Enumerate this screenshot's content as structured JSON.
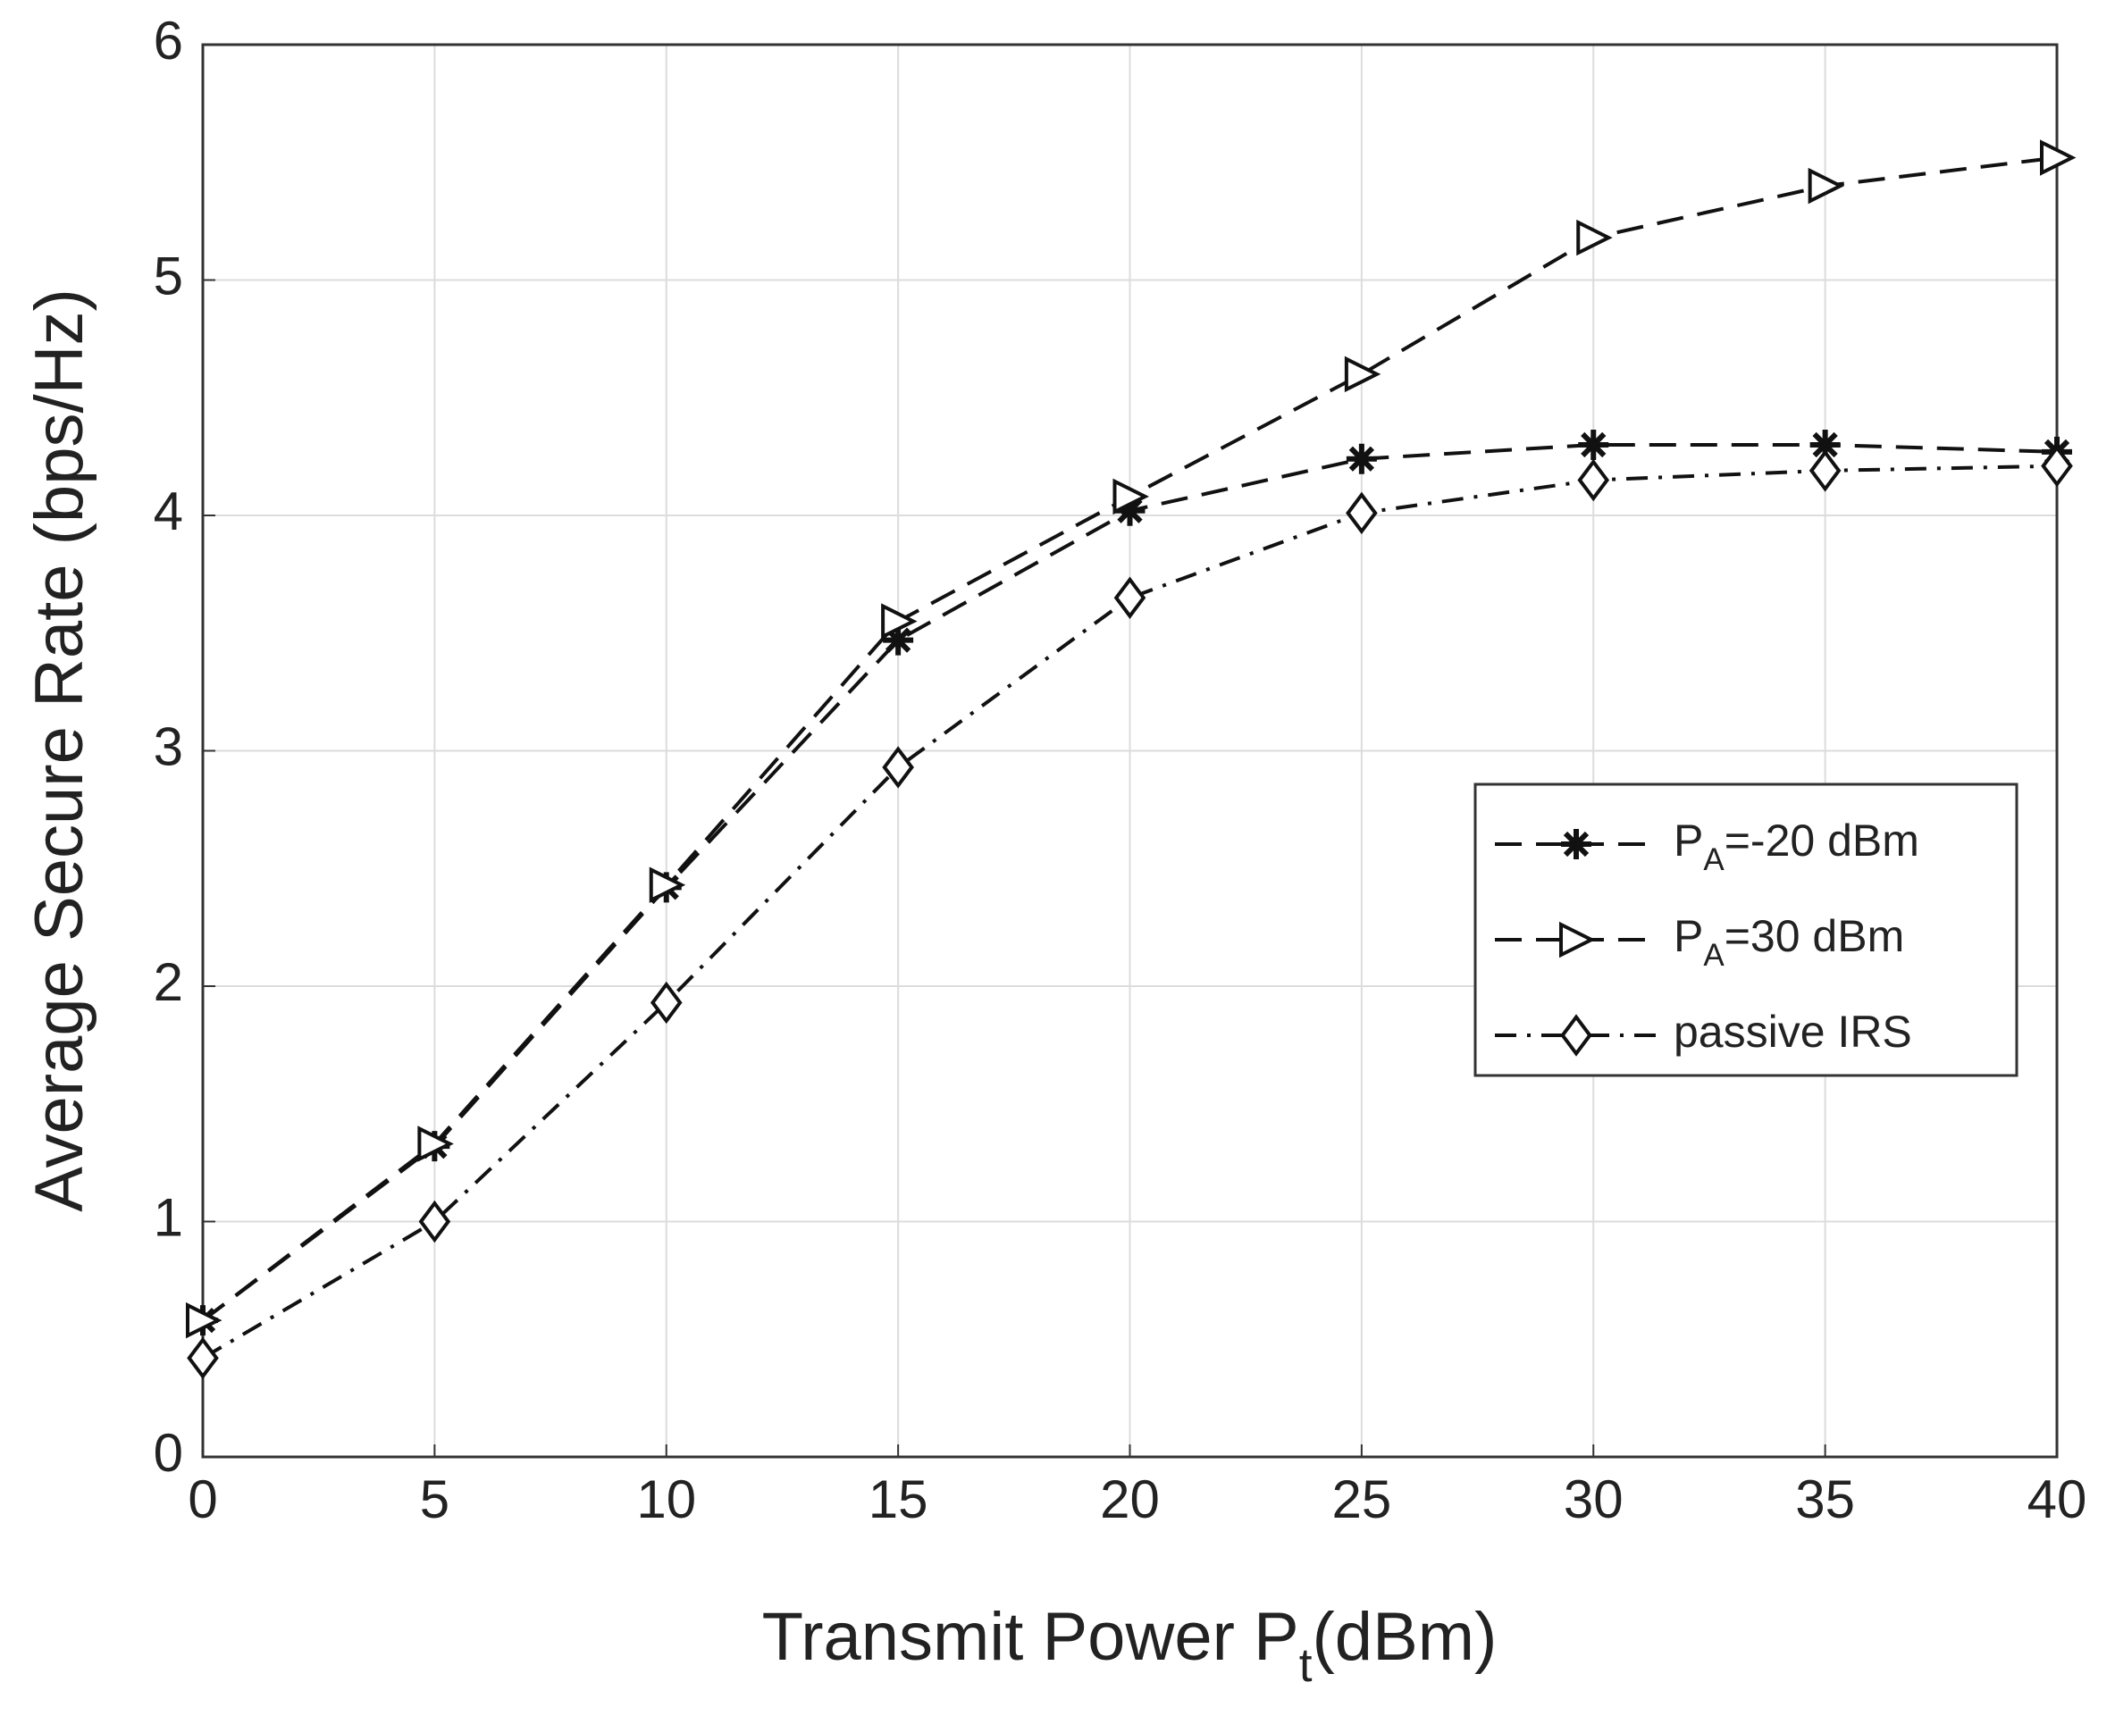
{
  "chart_data": {
    "type": "line",
    "xlabel": "Transmit Power Pt(dBm)",
    "ylabel": "Average Secure Rate (bps/Hz)",
    "x": [
      0,
      5,
      10,
      15,
      20,
      25,
      30,
      35,
      40
    ],
    "series": [
      {
        "name": "PA=-20 dBm",
        "color": "#111111",
        "marker": "asterisk",
        "linestyle": "dashed",
        "values": [
          0.58,
          1.32,
          2.42,
          3.47,
          4.02,
          4.24,
          4.3,
          4.3,
          4.27
        ]
      },
      {
        "name": "PA=30 dBm",
        "color": "#111111",
        "marker": "triangle-right",
        "linestyle": "dashed",
        "values": [
          0.58,
          1.33,
          2.43,
          3.55,
          4.08,
          4.6,
          5.18,
          5.4,
          5.52
        ]
      },
      {
        "name": "passive IRS",
        "color": "#111111",
        "marker": "diamond",
        "linestyle": "dashdot",
        "values": [
          0.42,
          1.0,
          1.93,
          2.93,
          3.65,
          4.01,
          4.15,
          4.19,
          4.21
        ]
      }
    ],
    "xlim": [
      0,
      40
    ],
    "xticks": [
      0,
      5,
      10,
      15,
      20,
      25,
      30,
      35,
      40
    ],
    "ylim": [
      0,
      6
    ],
    "yticks": [
      0,
      1,
      2,
      3,
      4,
      5,
      6
    ],
    "grid": true,
    "legend": "right"
  }
}
